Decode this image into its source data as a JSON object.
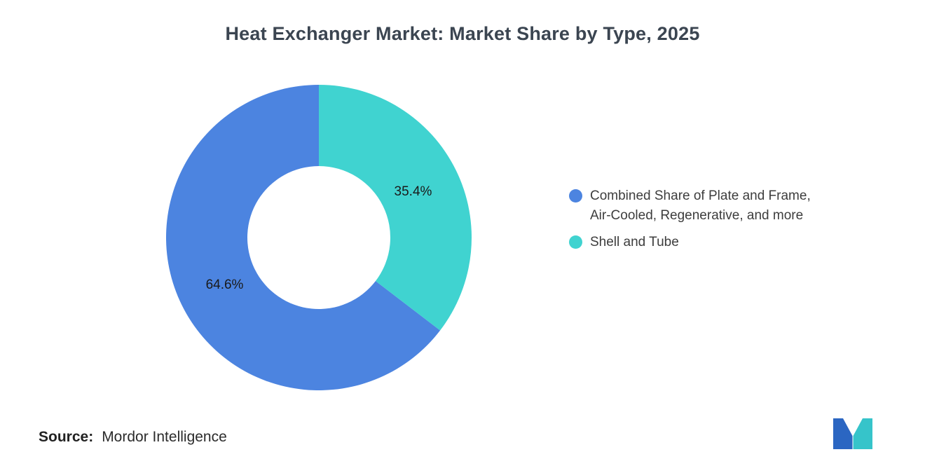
{
  "title": "Heat Exchanger Market: Market Share by Type, 2025",
  "chart_data": {
    "type": "pie",
    "subtype": "donut",
    "title": "Heat Exchanger Market: Market Share by Type, 2025",
    "unit": "%",
    "start": "12-oclock",
    "direction": "counterclockwise",
    "inner_radius_ratio": 0.47,
    "legend_position": "right",
    "segments": [
      {
        "label": "Combined Share of Plate and Frame, Air-Cooled, Regenerative, and more",
        "value": 64.6,
        "data_label": "64.6%",
        "color": "#4C84E0"
      },
      {
        "label": "Shell and Tube",
        "value": 35.4,
        "data_label": "35.4%",
        "color": "#40D3D0"
      }
    ]
  },
  "legend": {
    "items": [
      {
        "color": "#4C84E0",
        "line1": "Combined Share of Plate and Frame,",
        "line2": "Air-Cooled, Regenerative, and more"
      },
      {
        "color": "#40D3D0",
        "line1": "Shell and Tube"
      }
    ]
  },
  "source": {
    "label": "Source:",
    "value": "Mordor Intelligence"
  },
  "logo": {
    "name": "mordor-intelligence-logo",
    "blue": "#2B66C2",
    "teal": "#36C4CA"
  }
}
